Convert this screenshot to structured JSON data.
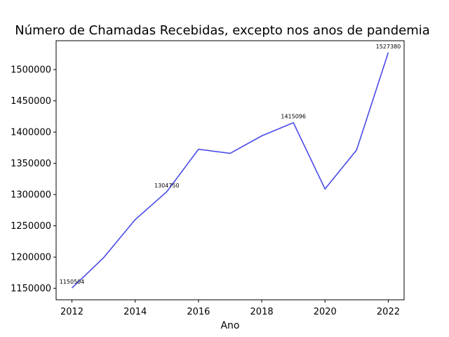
{
  "chart_data": {
    "type": "line",
    "title": "Número de Chamadas Recebidas, excepto nos anos de pandemia",
    "xlabel": "Ano",
    "ylabel": "",
    "x": [
      2012,
      2013,
      2014,
      2015,
      2016,
      2017,
      2018,
      2019,
      2020,
      2021,
      2022
    ],
    "series": [
      {
        "values": [
          1150504,
          1199000,
          1260000,
          1304750,
          1372500,
          1366000,
          1394000,
          1415096,
          1309000,
          1371500,
          1527380
        ],
        "color": "#4a4ae8"
      }
    ],
    "data_labels": [
      {
        "x": 2012,
        "y": 1150504,
        "text": "1150504"
      },
      {
        "x": 2015,
        "y": 1304750,
        "text": "1304750"
      },
      {
        "x": 2019,
        "y": 1415096,
        "text": "1415096"
      },
      {
        "x": 2022,
        "y": 1527380,
        "text": "1527380"
      }
    ],
    "xticks": [
      "2012",
      "2014",
      "2016",
      "2018",
      "2020",
      "2022"
    ],
    "yticks": [
      "1150000",
      "1200000",
      "1250000",
      "1300000",
      "1350000",
      "1400000",
      "1450000",
      "1500000"
    ],
    "xlim": [
      2011.5,
      2022.5
    ],
    "ylim": [
      1131660,
      1546224
    ],
    "grid": false,
    "legend": "none"
  }
}
